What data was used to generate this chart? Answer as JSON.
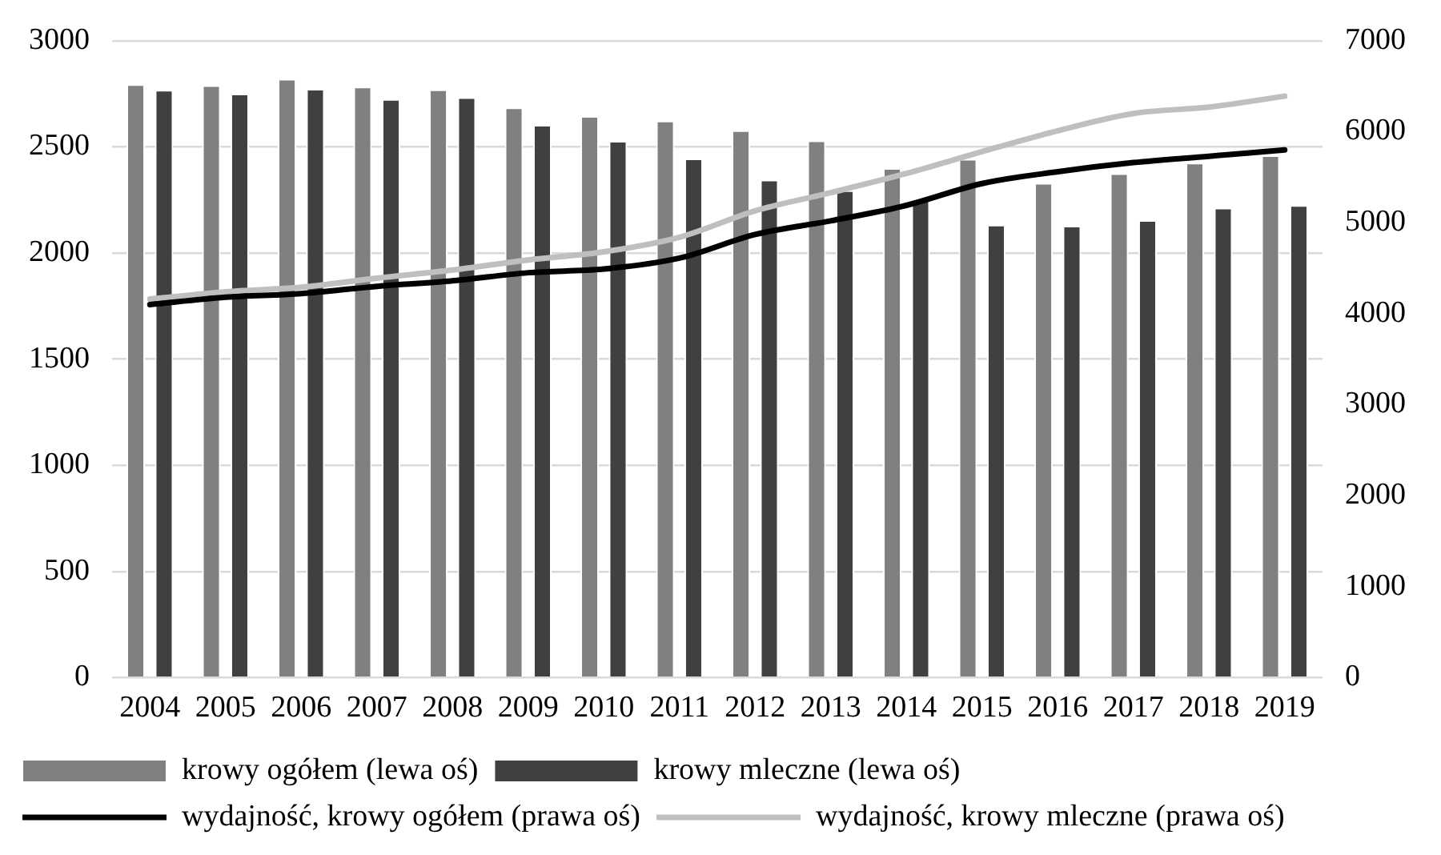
{
  "chart_data": {
    "type": "bar",
    "categories": [
      "2004",
      "2005",
      "2006",
      "2007",
      "2008",
      "2009",
      "2010",
      "2011",
      "2012",
      "2013",
      "2014",
      "2015",
      "2016",
      "2017",
      "2018",
      "2019"
    ],
    "series": [
      {
        "name": "krowy ogółem (lewa oś)",
        "color": "#808080",
        "values": [
          2795,
          2790,
          2820,
          2783,
          2770,
          2685,
          2645,
          2623,
          2578,
          2530,
          2400,
          2443,
          2330,
          2375,
          2425,
          2460
        ]
      },
      {
        "name": "krowy mleczne (lewa oś)",
        "color": "#404040",
        "values": [
          2768,
          2750,
          2773,
          2725,
          2733,
          2603,
          2528,
          2445,
          2345,
          2295,
          2248,
          2133,
          2128,
          2155,
          2213,
          2225
        ]
      },
      {
        "name": "wydajność, krowy ogółem (prawa oś)",
        "type": "line",
        "axis": "y2",
        "color": "#000000",
        "values": [
          4100,
          4180,
          4220,
          4300,
          4360,
          4450,
          4490,
          4610,
          4870,
          5020,
          5190,
          5430,
          5560,
          5660,
          5730,
          5800
        ]
      },
      {
        "name": "wydajność, krowy mleczne (prawa oś)",
        "type": "line",
        "axis": "y2",
        "color": "#bfbfbf",
        "values": [
          4160,
          4240,
          4290,
          4390,
          4480,
          4590,
          4680,
          4840,
          5130,
          5330,
          5540,
          5780,
          6010,
          6200,
          6270,
          6390
        ]
      }
    ],
    "ylim": [
      0,
      3000
    ],
    "yticks": [
      0,
      500,
      1000,
      1500,
      2000,
      2500,
      3000
    ],
    "y2lim": [
      0,
      7000
    ],
    "y2ticks": [
      0,
      1000,
      2000,
      3000,
      4000,
      5000,
      6000,
      7000
    ],
    "grid": "y",
    "legend": "bottom",
    "marker": "none",
    "line_style": "solid"
  }
}
